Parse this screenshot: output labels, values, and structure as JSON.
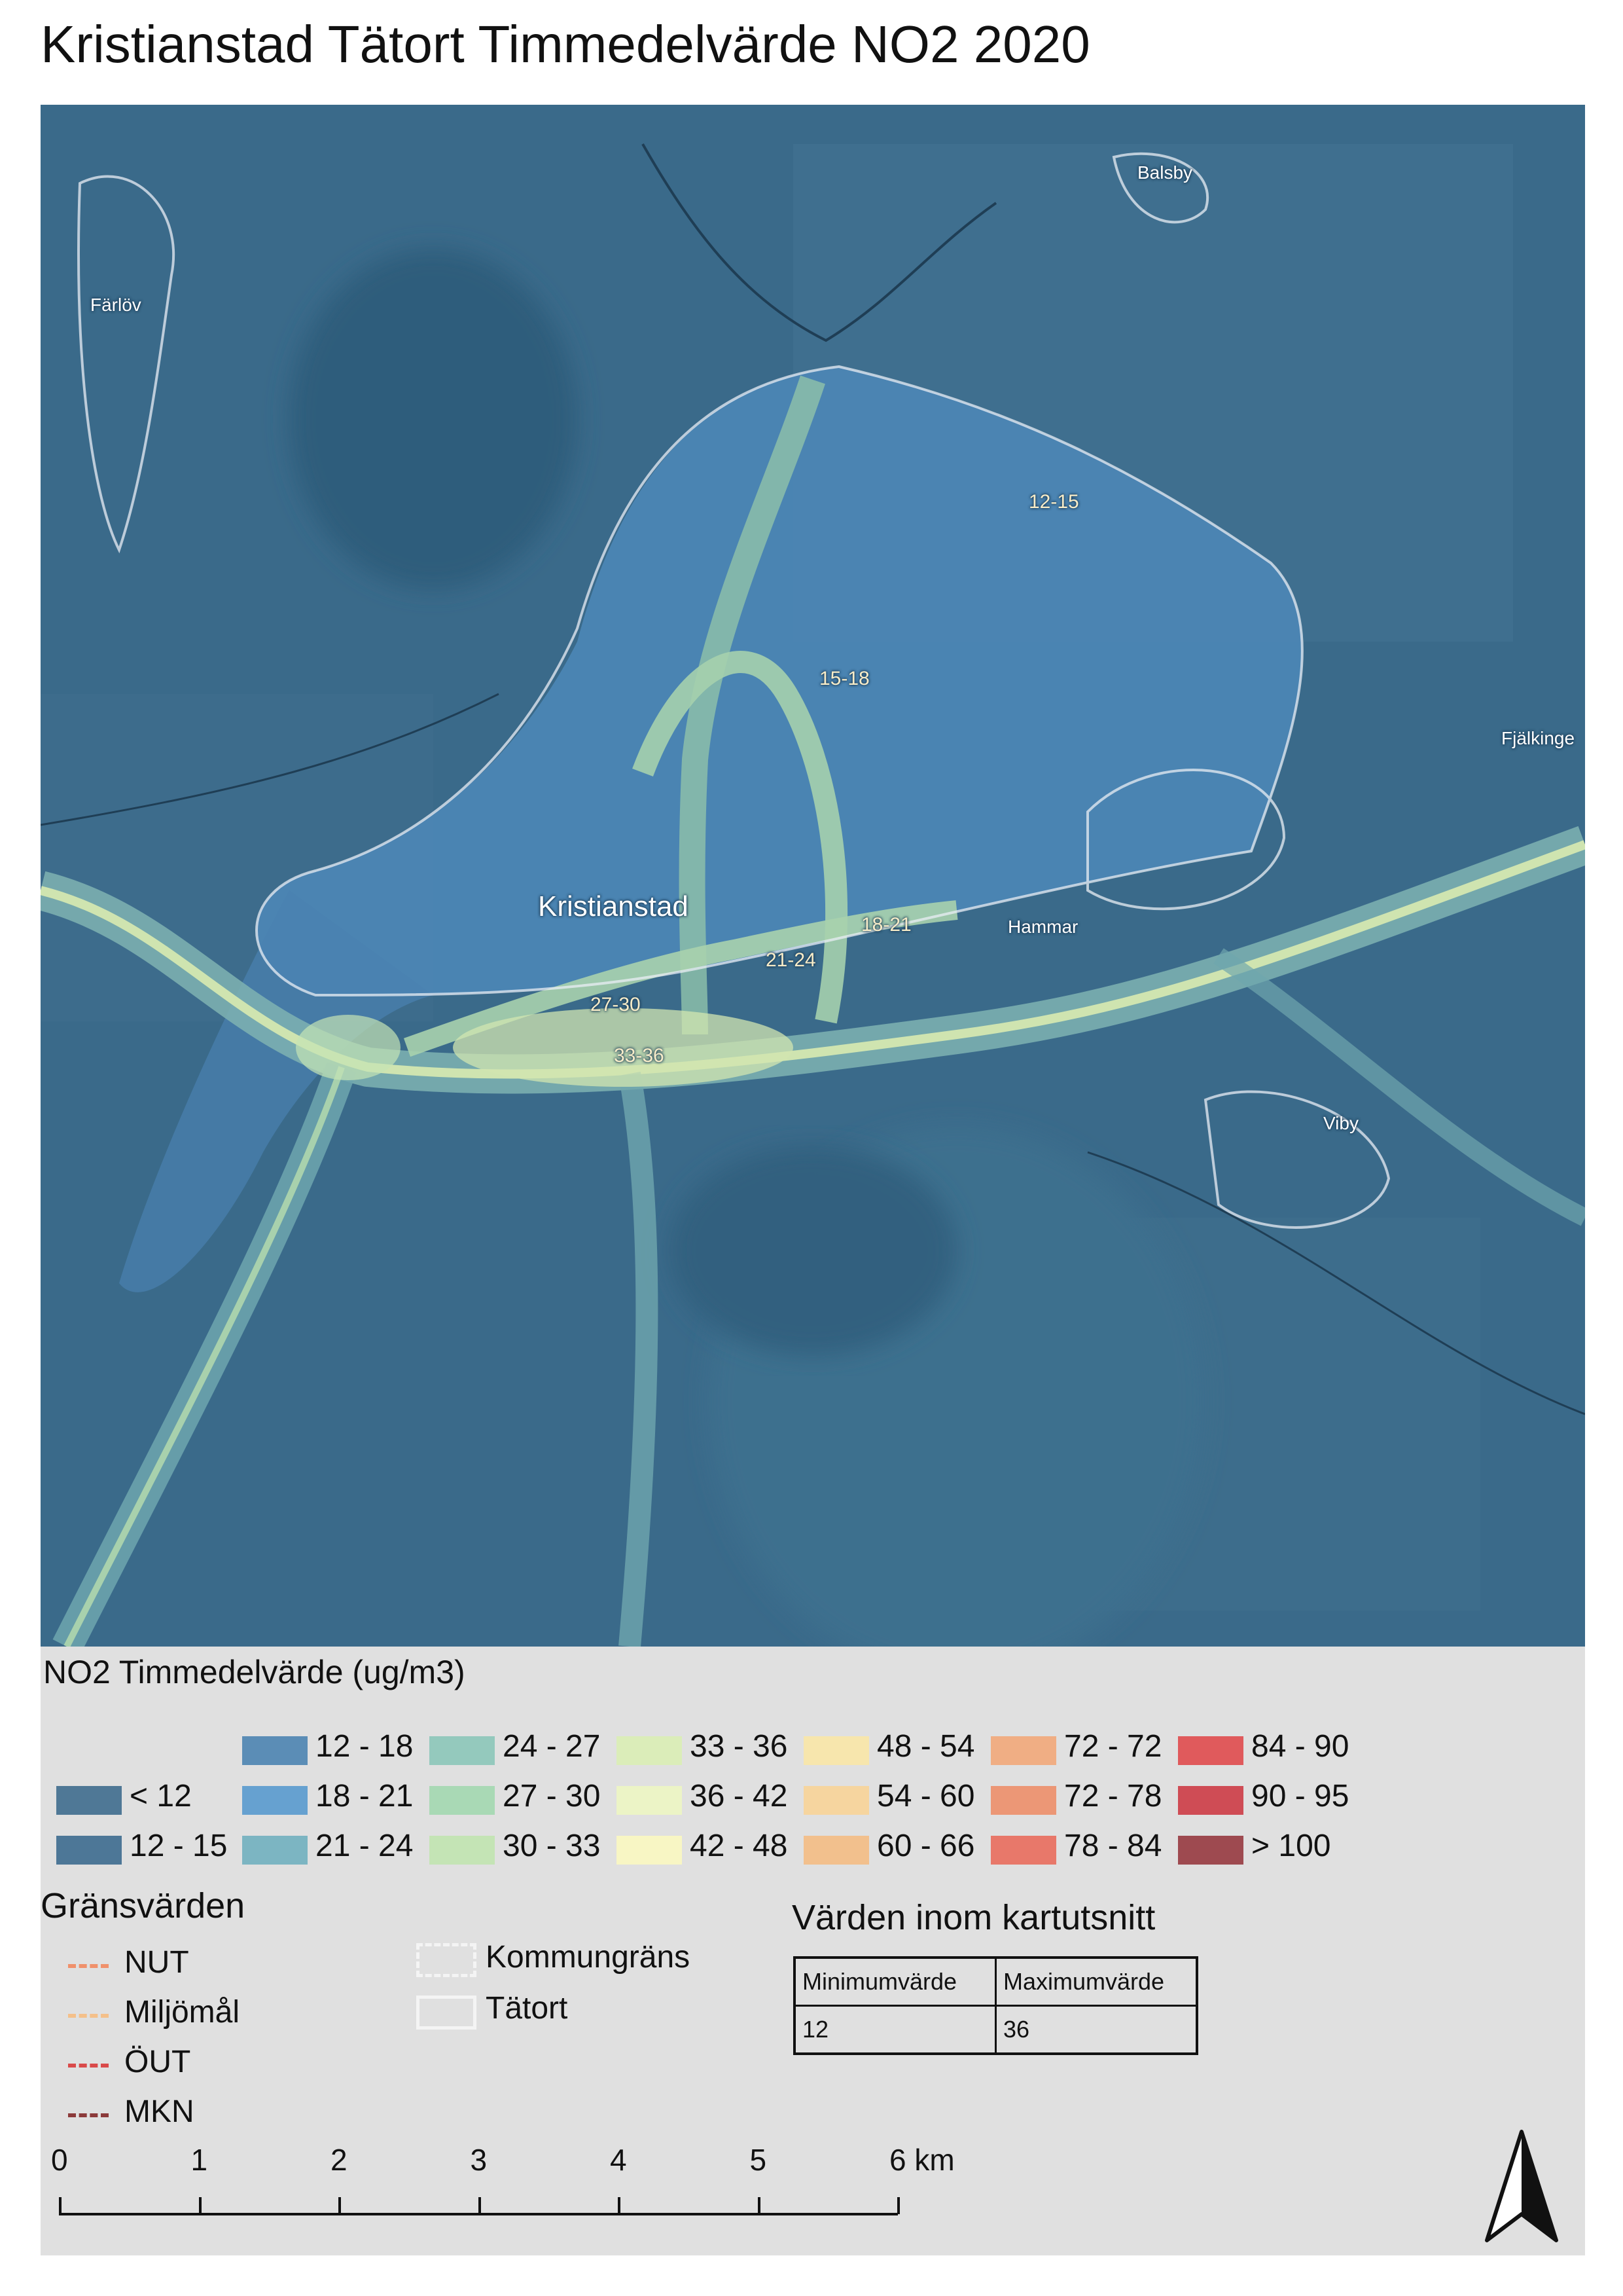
{
  "title": "Kristianstad Tätort Timmedelvärde NO2 2020",
  "map": {
    "place_labels": {
      "balsby": "Balsby",
      "farlov": "Färlöv",
      "fjalkinge": "Fjälkinge",
      "kristianstad": "Kristianstad",
      "hammar": "Hammar",
      "viby": "Viby"
    },
    "value_labels": {
      "l1": "12-15",
      "l2": "15-18",
      "l3": "18-21",
      "l4": "21-24",
      "l5": "27-30",
      "l6": "33-36"
    },
    "colors": {
      "base": "#3a6a8a",
      "urban": "#4e88b8",
      "road_low": "#6fa6ae",
      "road_mid": "#9cc7a8",
      "road_high": "#d2e6b0",
      "boundary": "#e9eef4"
    }
  },
  "legend": {
    "title": "NO2 Timmedelvärde (ug/m3)",
    "classes": [
      {
        "label": "< 12",
        "color": "#4f7896"
      },
      {
        "label": "12 - 15",
        "color": "#4d7797"
      },
      {
        "label": "12 - 18",
        "color": "#5b8db6"
      },
      {
        "label": "18 - 21",
        "color": "#66a1d0"
      },
      {
        "label": "21 - 24",
        "color": "#7cb5c2"
      },
      {
        "label": "24 - 27",
        "color": "#94c9bd"
      },
      {
        "label": "27 - 30",
        "color": "#a9d9b5"
      },
      {
        "label": "30 - 33",
        "color": "#c4e4b5"
      },
      {
        "label": "33 - 36",
        "color": "#dbedb9"
      },
      {
        "label": "36 - 42",
        "color": "#ecf4c6"
      },
      {
        "label": "42 - 48",
        "color": "#f8f6c4"
      },
      {
        "label": "48 - 54",
        "color": "#f7e6ad"
      },
      {
        "label": "54 - 60",
        "color": "#f6d59f"
      },
      {
        "label": "60 - 66",
        "color": "#f2c08d"
      },
      {
        "label": "72 - 72",
        "color": "#f0ae84"
      },
      {
        "label": "72 - 78",
        "color": "#ec9776"
      },
      {
        "label": "78 - 84",
        "color": "#e8786a"
      },
      {
        "label": "84 - 90",
        "color": "#e05a5c"
      },
      {
        "label": "90 - 95",
        "color": "#cf4c55"
      },
      {
        "label": "> 100",
        "color": "#9e4a50"
      }
    ]
  },
  "limits": {
    "title": "Gränsvärden",
    "items": [
      {
        "label": "NUT",
        "color": "#f0916c"
      },
      {
        "label": "Miljömål",
        "color": "#f4c08a"
      },
      {
        "label": "ÖUT",
        "color": "#d94a4a"
      },
      {
        "label": "MKN",
        "color": "#8c3b3b"
      }
    ]
  },
  "boundaries": {
    "kommun": "Kommungräns",
    "tatort": "Tätort"
  },
  "values_box": {
    "title": "Värden inom kartutsnitt",
    "headers": [
      "Minimumvärde",
      "Maximumvärde"
    ],
    "values": [
      "12",
      "36"
    ]
  },
  "scalebar": {
    "ticks": [
      "0",
      "1",
      "2",
      "3",
      "4",
      "5",
      "6 km"
    ]
  }
}
